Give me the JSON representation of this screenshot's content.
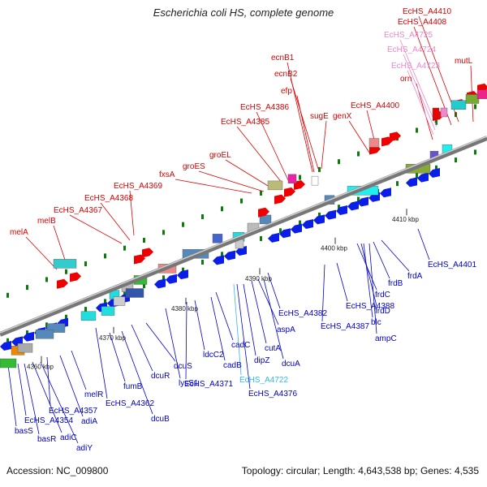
{
  "title": "Escherichia coli HS, complete genome",
  "footer": {
    "accession": "Accession: NC_009800",
    "topology": "Topology: circular; Length: 4,643,538 bp; Genes: 4,535"
  },
  "colors": {
    "top_labels": "#dd0000",
    "bottom_labels": "#0000cc",
    "pink_labels": "#ee88cc",
    "cyan_labels": "#33bbdd"
  },
  "kbp_ticks": [
    "4360 kbp",
    "4370 kbp",
    "4380 kbp",
    "4390 kbp",
    "4400 kbp",
    "4410 kbp"
  ],
  "top_labels": [
    "melA",
    "melB",
    "EcHS_A4367",
    "EcHS_A4368",
    "EcHS_A4369",
    "fxsA",
    "groES",
    "groEL",
    "EcHS_A4385",
    "EcHS_A4386",
    "efp",
    "ecnB2",
    "ecnB1",
    "sugE",
    "genX",
    "EcHS_A4400",
    "orn",
    "EcHS_A4723",
    "EcHS_A4724",
    "EcHS_A4725",
    "EcHS_A4408",
    "EcHS_A4410",
    "mutL"
  ],
  "bottom_labels": [
    "basS",
    "EcHS_A4354",
    "basR",
    "adiC",
    "adiY",
    "EcHS_A4357",
    "adiA",
    "melR",
    "EcHS_A4362",
    "fumB",
    "dcuB",
    "dcuR",
    "dcuS",
    "lysS1",
    "EcHS_A4371",
    "ldcC2",
    "cadB",
    "cadC",
    "EcHS_A4722",
    "dipZ",
    "EcHS_A4376",
    "cutA",
    "aspA",
    "dcuA",
    "EcHS_A4382",
    "EcHS_A4387",
    "EcHS_A4388",
    "frdC",
    "frdD",
    "blc",
    "ampC",
    "frdB",
    "frdA",
    "EcHS_A4401"
  ]
}
